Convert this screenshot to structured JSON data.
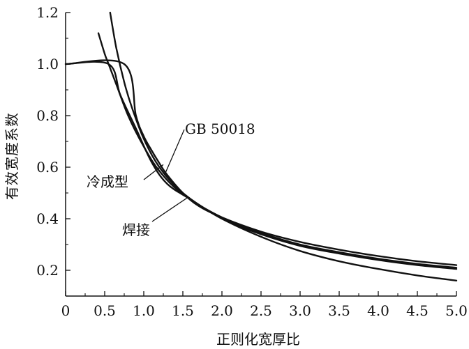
{
  "chart_data": {
    "type": "line",
    "xlabel": "正则化宽厚比",
    "ylabel": "有效宽度系数",
    "xlim": [
      0,
      5.0
    ],
    "ylim": [
      0.1,
      1.2
    ],
    "x_ticks": [
      "0",
      "0.5",
      "1.0",
      "1.5",
      "2.0",
      "2.5",
      "3.0",
      "3.5",
      "4.0",
      "4.5",
      "5.0"
    ],
    "y_ticks": [
      "0.2",
      "0.4",
      "0.6",
      "0.8",
      "1.0",
      "1.2"
    ],
    "grid": false,
    "legend": "none",
    "line_color": "#111111",
    "series": [
      {
        "name": "GB 50018",
        "x": [
          0,
          0.75,
          0.9,
          1.0,
          1.1,
          1.2,
          1.3,
          1.5,
          1.7,
          2.0,
          2.5,
          3.0,
          3.5,
          4.0,
          4.5,
          5.0
        ],
        "y": [
          1.0,
          1.0,
          0.8,
          0.72,
          0.665,
          0.615,
          0.57,
          0.5,
          0.45,
          0.405,
          0.35,
          0.31,
          0.28,
          0.255,
          0.235,
          0.22
        ]
      },
      {
        "name": "",
        "x": [
          0.57,
          0.65,
          0.75,
          0.85,
          1.0,
          1.2,
          1.5,
          2.0,
          2.5,
          3.0,
          3.5,
          4.0,
          4.5,
          5.0
        ],
        "y": [
          1.2,
          1.06,
          0.93,
          0.83,
          0.71,
          0.6,
          0.5,
          0.4,
          0.34,
          0.295,
          0.265,
          0.24,
          0.22,
          0.205
        ]
      },
      {
        "name": "冷成型",
        "x": [
          0.42,
          0.5,
          0.55,
          0.65,
          0.8,
          1.0,
          1.2,
          1.5,
          2.0,
          2.5,
          3.0,
          3.5,
          4.0,
          4.5,
          5.0
        ],
        "y": [
          1.12,
          1.04,
          1.0,
          0.92,
          0.8,
          0.68,
          0.585,
          0.495,
          0.405,
          0.345,
          0.3,
          0.27,
          0.245,
          0.225,
          0.21
        ]
      },
      {
        "name": "焊接",
        "x": [
          0,
          0.55,
          0.7,
          0.9,
          1.1,
          1.3,
          1.6,
          2.0,
          2.5,
          3.0,
          3.5,
          4.0,
          4.5,
          5.0
        ],
        "y": [
          1.0,
          1.0,
          0.88,
          0.75,
          0.62,
          0.535,
          0.475,
          0.4,
          0.33,
          0.275,
          0.235,
          0.205,
          0.18,
          0.16
        ]
      }
    ],
    "annotations": [
      {
        "text": "GB 50018",
        "x_point": 1.28,
        "y_point": 0.58
      },
      {
        "text": "冷成型",
        "x_point": 1.25,
        "y_point": 0.61
      },
      {
        "text": "焊接",
        "x_point": 1.55,
        "y_point": 0.48
      }
    ]
  }
}
